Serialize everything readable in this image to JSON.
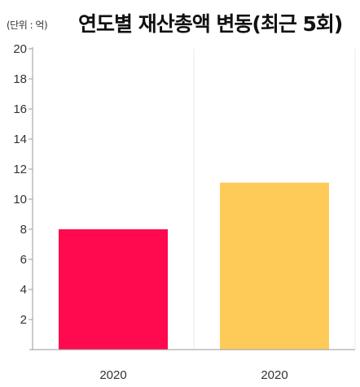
{
  "header": {
    "unit": "(단위 : 억)",
    "title": "연도별 재산총액 변동(최근 5회)"
  },
  "chart_data": {
    "type": "bar",
    "title": "연도별 재산총액 변동(최근 5회)",
    "unit": "(단위 : 억)",
    "xlabel": "",
    "ylabel": "",
    "categories": [
      "2020",
      "2020"
    ],
    "values": [
      8,
      11.1
    ],
    "colors": [
      "#ff0a4e",
      "#ffcb58"
    ],
    "yticks": [
      2,
      4,
      6,
      8,
      10,
      12,
      14,
      16,
      18,
      20
    ],
    "ylim": [
      0,
      20
    ],
    "grid": "vertical separators",
    "legend": "none"
  }
}
